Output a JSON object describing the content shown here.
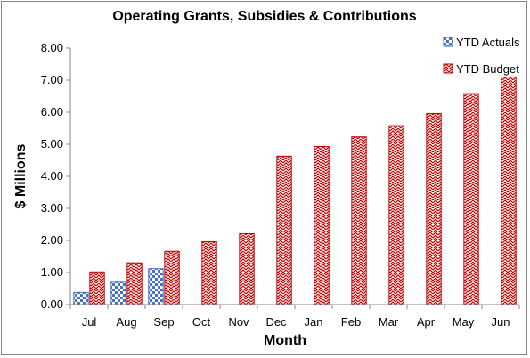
{
  "chart_data": {
    "type": "bar",
    "title": "Operating Grants, Subsidies & Contributions",
    "xlabel": "Month",
    "ylabel": "$ Millions",
    "categories": [
      "Jul",
      "Aug",
      "Sep",
      "Oct",
      "Nov",
      "Dec",
      "Jan",
      "Feb",
      "Mar",
      "Apr",
      "May",
      "Jun"
    ],
    "ylim": [
      0,
      8
    ],
    "ytick_labels": [
      "0.00",
      "1.00",
      "2.00",
      "3.00",
      "4.00",
      "5.00",
      "6.00",
      "7.00",
      "8.00"
    ],
    "grid": false,
    "legend_position": "top-right",
    "series": [
      {
        "name": "YTD Actuals",
        "color": "#4472C4",
        "pattern": "checkerboard",
        "values": [
          0.38,
          0.7,
          1.12,
          null,
          null,
          null,
          null,
          null,
          null,
          null,
          null,
          null
        ]
      },
      {
        "name": "YTD Budget",
        "color": "#C00000",
        "pattern": "zigzag",
        "values": [
          1.02,
          1.3,
          1.66,
          1.96,
          2.21,
          4.63,
          4.93,
          5.23,
          5.58,
          5.96,
          6.58,
          7.1
        ]
      }
    ]
  }
}
